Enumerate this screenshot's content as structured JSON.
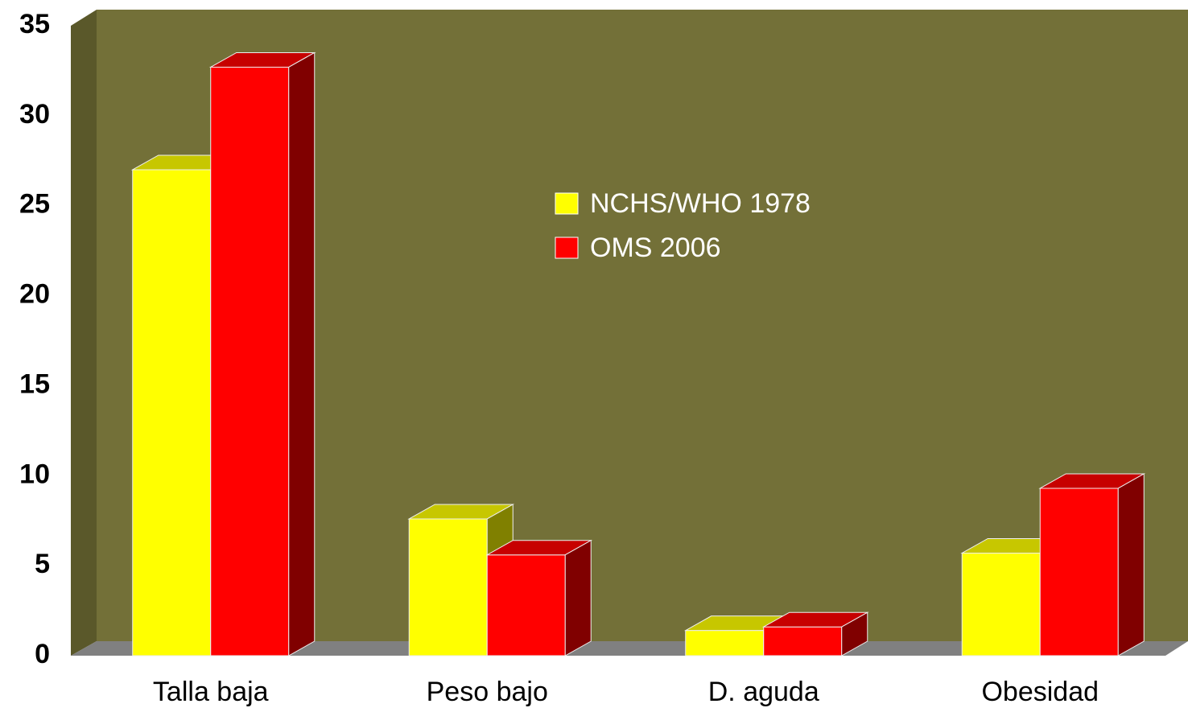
{
  "chart_data": {
    "type": "bar",
    "categories": [
      "Talla baja",
      "Peso bajo",
      "D. aguda",
      "Obesidad"
    ],
    "series": [
      {
        "name": "NCHS/WHO 1978",
        "color": "#ffff00",
        "values": [
          27,
          7.6,
          1.4,
          5.7
        ]
      },
      {
        "name": "OMS 2006",
        "color": "#ff0000",
        "values": [
          32.7,
          5.6,
          1.6,
          9.3
        ]
      }
    ],
    "ylim": [
      0,
      35
    ],
    "yticks": [
      0,
      5,
      10,
      15,
      20,
      25,
      30,
      35
    ],
    "grid": false
  }
}
